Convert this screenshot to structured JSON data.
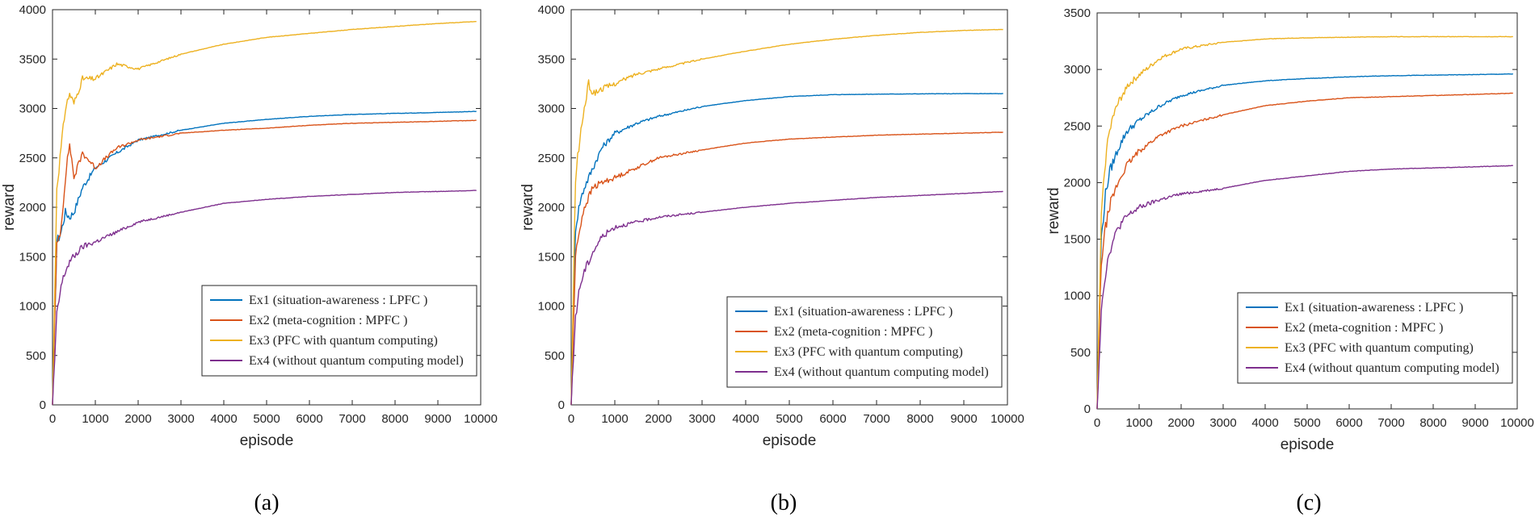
{
  "chart_data": [
    {
      "type": "line",
      "caption": "(a)",
      "xlabel": "episode",
      "ylabel": "reward",
      "xlim": [
        0,
        10000
      ],
      "ylim": [
        0,
        4000
      ],
      "xticks": [
        "0",
        "1000",
        "2000",
        "3000",
        "4000",
        "5000",
        "6000",
        "7000",
        "8000",
        "9000",
        "10000"
      ],
      "yticks": [
        "0",
        "500",
        "1000",
        "1500",
        "2000",
        "2500",
        "3000",
        "3500",
        "4000"
      ],
      "legend_position": "bottom-right",
      "series": [
        {
          "name": "Ex1",
          "label": "Ex1 (situation-awareness : LPFC )",
          "color": "#0072BD",
          "x": [
            0,
            100,
            200,
            300,
            400,
            500,
            700,
            1000,
            1500,
            2000,
            3000,
            4000,
            5000,
            6000,
            7000,
            8000,
            9000,
            9900
          ],
          "y": [
            0,
            1650,
            1750,
            1950,
            1900,
            1950,
            2200,
            2400,
            2550,
            2680,
            2780,
            2850,
            2890,
            2920,
            2940,
            2950,
            2960,
            2970
          ]
        },
        {
          "name": "Ex2",
          "label": "Ex2 (meta-cognition : MPFC )",
          "color": "#D95319",
          "x": [
            0,
            100,
            200,
            300,
            400,
            500,
            700,
            1000,
            1500,
            2000,
            3000,
            4000,
            5000,
            6000,
            7000,
            8000,
            9000,
            9900
          ],
          "y": [
            0,
            1600,
            1800,
            2300,
            2650,
            2300,
            2550,
            2400,
            2600,
            2680,
            2750,
            2780,
            2800,
            2830,
            2850,
            2860,
            2870,
            2880
          ]
        },
        {
          "name": "Ex3",
          "label": "Ex3 (PFC with quantum computing)",
          "color": "#EDB120",
          "x": [
            0,
            100,
            200,
            300,
            400,
            500,
            700,
            1000,
            1500,
            2000,
            3000,
            4000,
            5000,
            6000,
            7000,
            8000,
            9000,
            9900
          ],
          "y": [
            0,
            2200,
            2600,
            3000,
            3150,
            3050,
            3300,
            3300,
            3450,
            3400,
            3550,
            3650,
            3720,
            3760,
            3800,
            3830,
            3860,
            3880
          ]
        },
        {
          "name": "Ex4",
          "label": "Ex4 (without quantum computing model)",
          "color": "#7E2F8E",
          "x": [
            0,
            100,
            200,
            300,
            400,
            500,
            700,
            1000,
            1500,
            2000,
            3000,
            4000,
            5000,
            6000,
            7000,
            8000,
            9000,
            9900
          ],
          "y": [
            0,
            900,
            1200,
            1350,
            1450,
            1500,
            1600,
            1650,
            1750,
            1850,
            1950,
            2040,
            2080,
            2110,
            2130,
            2150,
            2160,
            2170
          ]
        }
      ]
    },
    {
      "type": "line",
      "caption": "(b)",
      "xlabel": "episode",
      "ylabel": "reward",
      "xlim": [
        0,
        10000
      ],
      "ylim": [
        0,
        4000
      ],
      "xticks": [
        "0",
        "1000",
        "2000",
        "3000",
        "4000",
        "5000",
        "6000",
        "7000",
        "8000",
        "9000",
        "10000"
      ],
      "yticks": [
        "0",
        "500",
        "1000",
        "1500",
        "2000",
        "2500",
        "3000",
        "3500",
        "4000"
      ],
      "legend_position": "bottom-right",
      "series": [
        {
          "name": "Ex1",
          "label": "Ex1 (situation-awareness : LPFC )",
          "color": "#0072BD",
          "x": [
            0,
            100,
            200,
            300,
            500,
            700,
            1000,
            1500,
            2000,
            3000,
            4000,
            5000,
            6000,
            7000,
            8000,
            9000,
            9900
          ],
          "y": [
            0,
            1800,
            2050,
            2200,
            2400,
            2600,
            2750,
            2850,
            2920,
            3020,
            3080,
            3120,
            3140,
            3145,
            3148,
            3150,
            3150
          ]
        },
        {
          "name": "Ex2",
          "label": "Ex2 (meta-cognition : MPFC )",
          "color": "#D95319",
          "x": [
            0,
            100,
            200,
            300,
            500,
            700,
            1000,
            1500,
            2000,
            3000,
            4000,
            5000,
            6000,
            7000,
            8000,
            9000,
            9900
          ],
          "y": [
            0,
            1500,
            1800,
            2000,
            2200,
            2250,
            2300,
            2400,
            2500,
            2580,
            2650,
            2690,
            2710,
            2730,
            2740,
            2750,
            2760
          ]
        },
        {
          "name": "Ex3",
          "label": "Ex3 (PFC with quantum computing)",
          "color": "#EDB120",
          "x": [
            0,
            100,
            200,
            300,
            400,
            500,
            700,
            1000,
            1500,
            2000,
            3000,
            4000,
            5000,
            6000,
            7000,
            8000,
            9000,
            9900
          ],
          "y": [
            0,
            2300,
            2700,
            3000,
            3250,
            3150,
            3200,
            3250,
            3350,
            3400,
            3500,
            3580,
            3650,
            3700,
            3740,
            3770,
            3790,
            3800
          ]
        },
        {
          "name": "Ex4",
          "label": "Ex4 (without quantum computing model)",
          "color": "#7E2F8E",
          "x": [
            0,
            100,
            200,
            300,
            500,
            700,
            1000,
            1500,
            2000,
            3000,
            4000,
            5000,
            6000,
            7000,
            8000,
            9000,
            9900
          ],
          "y": [
            0,
            900,
            1200,
            1350,
            1550,
            1700,
            1800,
            1850,
            1900,
            1950,
            2000,
            2040,
            2070,
            2100,
            2120,
            2140,
            2160
          ]
        }
      ]
    },
    {
      "type": "line",
      "caption": "(c)",
      "xlabel": "episode",
      "ylabel": "reward",
      "xlim": [
        0,
        10000
      ],
      "ylim": [
        0,
        3500
      ],
      "xticks": [
        "0",
        "1000",
        "2000",
        "3000",
        "4000",
        "5000",
        "6000",
        "7000",
        "8000",
        "9000",
        "10000"
      ],
      "yticks": [
        "0",
        "500",
        "1000",
        "1500",
        "2000",
        "2500",
        "3000",
        "3500"
      ],
      "legend_position": "bottom-right",
      "series": [
        {
          "name": "Ex1",
          "label": "Ex1 (situation-awareness : LPFC )",
          "color": "#0072BD",
          "x": [
            0,
            100,
            200,
            300,
            500,
            700,
            1000,
            1500,
            2000,
            3000,
            4000,
            5000,
            6000,
            7000,
            8000,
            9000,
            9900
          ],
          "y": [
            0,
            1500,
            1900,
            2100,
            2300,
            2450,
            2550,
            2680,
            2770,
            2860,
            2900,
            2920,
            2935,
            2945,
            2950,
            2955,
            2960
          ]
        },
        {
          "name": "Ex2",
          "label": "Ex2 (meta-cognition : MPFC )",
          "color": "#D95319",
          "x": [
            0,
            100,
            200,
            300,
            500,
            700,
            1000,
            1500,
            2000,
            3000,
            4000,
            5000,
            6000,
            7000,
            8000,
            9000,
            9900
          ],
          "y": [
            0,
            1300,
            1600,
            1800,
            2000,
            2150,
            2280,
            2420,
            2500,
            2600,
            2680,
            2720,
            2750,
            2760,
            2770,
            2780,
            2790
          ]
        },
        {
          "name": "Ex3",
          "label": "Ex3 (PFC with quantum computing)",
          "color": "#EDB120",
          "x": [
            0,
            100,
            200,
            300,
            500,
            700,
            1000,
            1500,
            2000,
            3000,
            4000,
            5000,
            6000,
            7000,
            8000,
            9000,
            9900
          ],
          "y": [
            0,
            1700,
            2200,
            2500,
            2700,
            2850,
            2950,
            3100,
            3180,
            3240,
            3270,
            3280,
            3285,
            3290,
            3290,
            3290,
            3290
          ]
        },
        {
          "name": "Ex4",
          "label": "Ex4 (without quantum computing model)",
          "color": "#7E2F8E",
          "x": [
            0,
            100,
            200,
            300,
            500,
            700,
            1000,
            1500,
            2000,
            3000,
            4000,
            5000,
            6000,
            7000,
            8000,
            9000,
            9900
          ],
          "y": [
            0,
            900,
            1200,
            1400,
            1600,
            1700,
            1780,
            1850,
            1900,
            1950,
            2020,
            2060,
            2100,
            2120,
            2130,
            2140,
            2150
          ]
        }
      ]
    }
  ]
}
